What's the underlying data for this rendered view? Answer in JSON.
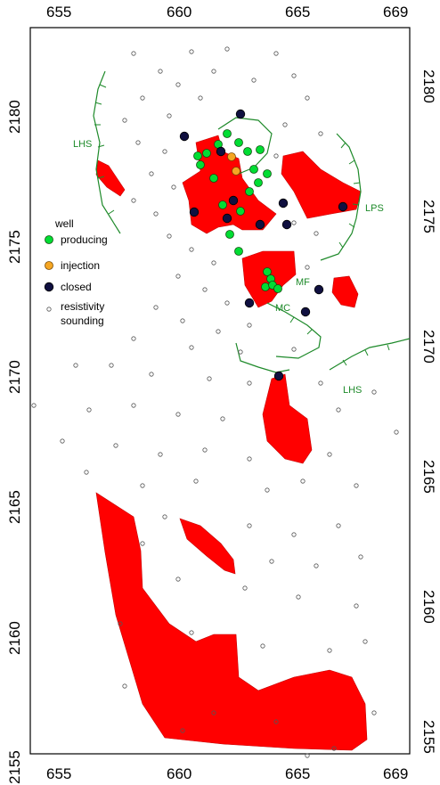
{
  "map": {
    "x_axis_ticks": [
      "655",
      "660",
      "665",
      "669"
    ],
    "y_axis_ticks": [
      "2155",
      "2160",
      "2165",
      "2170",
      "2175",
      "2180"
    ],
    "colors": {
      "anomaly_fill": "#ff0000",
      "fault_line": "#1e8a2a",
      "producing": "#00dd33",
      "injection": "#f5a623",
      "closed": "#101040",
      "sounding_stroke": "#555555"
    }
  },
  "legend": {
    "well_title": "well",
    "producing": "producing",
    "injection": "injection",
    "closed": "closed",
    "resistivity": "resistivity",
    "sounding": "sounding"
  },
  "labels": {
    "lhs_nw": "LHS",
    "lps": "LPS",
    "mf": "MF",
    "mc": "MC",
    "lhs_se": "LHS"
  }
}
